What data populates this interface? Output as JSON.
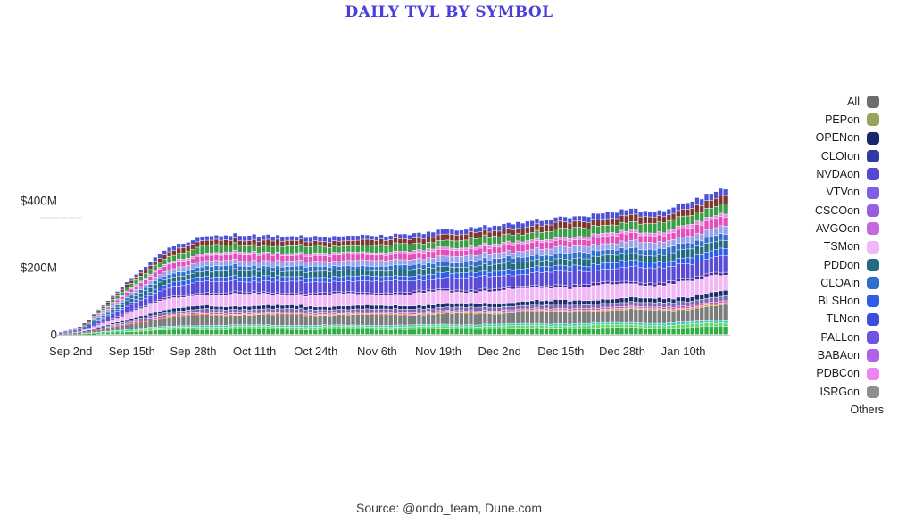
{
  "page": {
    "title": "DAILY TVL BY SYMBOL",
    "title_color": "#4a3fd8",
    "source_line": "Source: @ondo_team, Dune.com",
    "background": "#ffffff",
    "axis_text_color": "#2a2a2a"
  },
  "legend": {
    "position": "right",
    "items": [
      {
        "label": "All",
        "color": "#6e6e6e"
      },
      {
        "label": "PEPon",
        "color": "#9aa35c"
      },
      {
        "label": "OPENon",
        "color": "#17296b"
      },
      {
        "label": "CLOIon",
        "color": "#3038a8"
      },
      {
        "label": "NVDAon",
        "color": "#5449d2"
      },
      {
        "label": "VTVon",
        "color": "#8060e0"
      },
      {
        "label": "CSCOon",
        "color": "#9c5ce0"
      },
      {
        "label": "AVGOon",
        "color": "#c468e0"
      },
      {
        "label": "TSMon",
        "color": "#f2b8f5"
      },
      {
        "label": "PDDon",
        "color": "#236b80"
      },
      {
        "label": "CLOAin",
        "color": "#2f6fc9"
      },
      {
        "label": "BLSHon",
        "color": "#2e5ce8"
      },
      {
        "label": "TLNon",
        "color": "#3c4de0"
      },
      {
        "label": "PALLon",
        "color": "#6e54e6"
      },
      {
        "label": "BABAon",
        "color": "#ae62e8"
      },
      {
        "label": "PDBCon",
        "color": "#ee85ee"
      },
      {
        "label": "ISRGon",
        "color": "#8f8f8f"
      },
      {
        "label": "Others",
        "color": null
      }
    ]
  },
  "chart_data": {
    "type": "bar",
    "stacked": true,
    "title": "DAILY TVL BY SYMBOL",
    "unit": "$M (USD millions)",
    "grid": false,
    "legend_position": "right",
    "ylim": [
      0,
      453
    ],
    "y_ticks": [
      {
        "label": "$400M",
        "value": 400
      },
      {
        "label": "$200M",
        "value": 200
      },
      {
        "label": "0",
        "value": 0
      }
    ],
    "x_start_date": "Aug 31",
    "n_days": 142,
    "x_ticks": [
      {
        "label": "Sep 2nd",
        "day": 2
      },
      {
        "label": "Sep 15th",
        "day": 15
      },
      {
        "label": "Sep 28th",
        "day": 28
      },
      {
        "label": "Oct 11th",
        "day": 41
      },
      {
        "label": "Oct 24th",
        "day": 54
      },
      {
        "label": "Nov 6th",
        "day": 67
      },
      {
        "label": "Nov 19th",
        "day": 80
      },
      {
        "label": "Dec 2nd",
        "day": 93
      },
      {
        "label": "Dec 15th",
        "day": 106
      },
      {
        "label": "Dec 28th",
        "day": 119
      },
      {
        "label": "Jan 10th",
        "day": 132
      }
    ],
    "total_tvl_keypoints_musd": [
      [
        0,
        8
      ],
      [
        2,
        15
      ],
      [
        4,
        24
      ],
      [
        6,
        45
      ],
      [
        8,
        75
      ],
      [
        10,
        100
      ],
      [
        12,
        130
      ],
      [
        14,
        155
      ],
      [
        16,
        180
      ],
      [
        18,
        205
      ],
      [
        20,
        228
      ],
      [
        22,
        250
      ],
      [
        24,
        264
      ],
      [
        26,
        274
      ],
      [
        28,
        283
      ],
      [
        31,
        291
      ],
      [
        34,
        297
      ],
      [
        38,
        300
      ],
      [
        42,
        297
      ],
      [
        48,
        294
      ],
      [
        54,
        292
      ],
      [
        60,
        293
      ],
      [
        67,
        296
      ],
      [
        72,
        298
      ],
      [
        76,
        302
      ],
      [
        80,
        310
      ],
      [
        84,
        314
      ],
      [
        88,
        319
      ],
      [
        93,
        329
      ],
      [
        97,
        336
      ],
      [
        101,
        342
      ],
      [
        106,
        351
      ],
      [
        110,
        353
      ],
      [
        114,
        360
      ],
      [
        119,
        369
      ],
      [
        122,
        372
      ],
      [
        124,
        374
      ],
      [
        126,
        363
      ],
      [
        128,
        373
      ],
      [
        130,
        382
      ],
      [
        132,
        392
      ],
      [
        134,
        400
      ],
      [
        136,
        410
      ],
      [
        138,
        424
      ],
      [
        141,
        440
      ]
    ],
    "series_layers_bottom_to_top": [
      {
        "name": "green-base",
        "color": "#2fae44",
        "weight": 0.045
      },
      {
        "name": "bright-green",
        "color": "#5fd964",
        "weight": 0.02
      },
      {
        "name": "turquoise",
        "color": "#35c8be",
        "weight": 0.015
      },
      {
        "name": "gray-All",
        "color": "#7c7c7c",
        "weight": 0.085
      },
      {
        "name": "orange",
        "color": "#e0913a",
        "weight": 0.01
      },
      {
        "name": "magenta",
        "color": "#cc44cc",
        "weight": 0.012
      },
      {
        "name": "slate-purple",
        "color": "#7a68b0",
        "weight": 0.028
      },
      {
        "name": "OPENon-navy",
        "color": "#1c2e6e",
        "weight": 0.03
      },
      {
        "name": "TSMon-light-pink",
        "color": "#f2b8f5",
        "weight": 0.095
      },
      {
        "name": "dark-purple",
        "color": "#46289a",
        "weight": 0.018
      },
      {
        "name": "NVDAon-violet",
        "color": "#5a4ad8",
        "weight": 0.095
      },
      {
        "name": "BLSHon-royal-blue",
        "color": "#2e5ce8",
        "weight": 0.04
      },
      {
        "name": "PDDon-teal",
        "color": "#256b80",
        "weight": 0.05
      },
      {
        "name": "CLOAin-blue",
        "color": "#2f6fc9",
        "weight": 0.04
      },
      {
        "name": "periwinkle",
        "color": "#98a2ec",
        "weight": 0.045
      },
      {
        "name": "hot-pink",
        "color": "#e34fb8",
        "weight": 0.05
      },
      {
        "name": "PDBCon-pink",
        "color": "#ee85ee",
        "weight": 0.02
      },
      {
        "name": "PEPon-green",
        "color": "#3a9e46",
        "weight": 0.06
      },
      {
        "name": "maroon",
        "color": "#82342e",
        "weight": 0.045
      },
      {
        "name": "indigo-cap",
        "color": "#4a50d8",
        "weight": 0.04
      }
    ]
  }
}
